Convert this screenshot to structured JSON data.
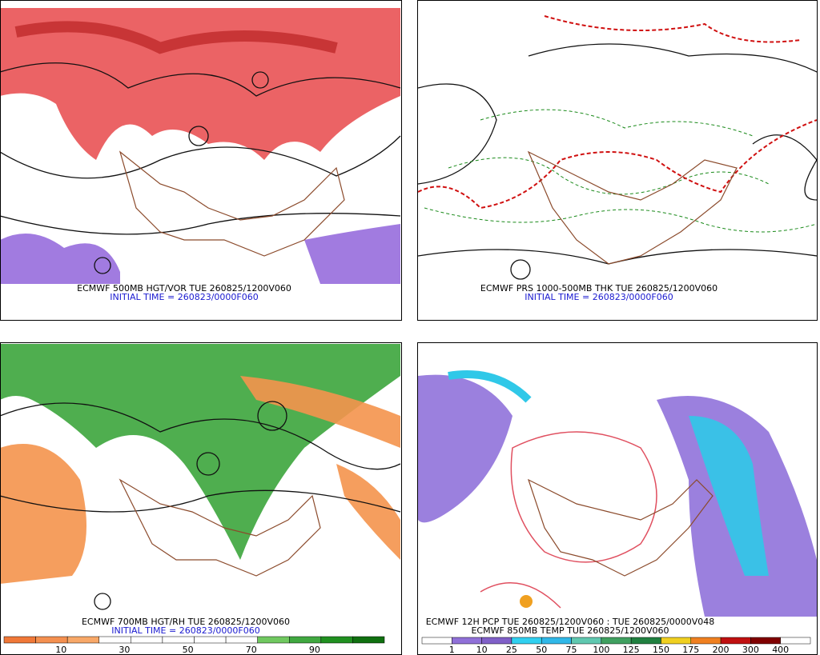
{
  "panels": [
    {
      "lines": [
        "ECMWF 500MB HGT/VOR TUE 260825/1200V060",
        "INITIAL TIME = 260823/0000F060"
      ]
    },
    {
      "lines": [
        "ECMWF PRS 1000-500MB THK TUE 260825/1200V060",
        "INITIAL TIME = 260823/0000F060"
      ]
    },
    {
      "lines": [
        "ECMWF 700MB HGT/RH TUE 260825/1200V060",
        "INITIAL TIME = 260823/0000F060"
      ],
      "colorbar": [
        10,
        30,
        50,
        70,
        90
      ]
    },
    {
      "lines": [
        "ECMWF 12H PCP TUE 260825/1200V060 : TUE 260825/0000V048",
        "ECMWF 850MB TEMP TUE 260825/1200V060"
      ],
      "colorbar": [
        1,
        10,
        25,
        50,
        75,
        100,
        125,
        150,
        175,
        200,
        300,
        400
      ]
    }
  ]
}
